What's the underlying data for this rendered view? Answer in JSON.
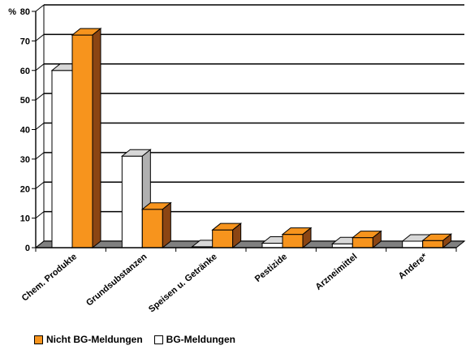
{
  "chart_data": {
    "type": "bar",
    "style": "3d-clustered",
    "unit_label": "%",
    "categories": [
      "Chem. Produkte",
      "Grundsubstanzen",
      "Speisen u. Getränke",
      "Pestizide",
      "Arzneimittel",
      "Andere*"
    ],
    "series": [
      {
        "name": "BG-Meldungen",
        "values": [
          60,
          31,
          0.3,
          1.5,
          1.3,
          2.2
        ],
        "color": "#ffffff",
        "side_color": "#b0b0b0",
        "top_color": "#d8d8d8"
      },
      {
        "name": "Nicht BG-Meldungen",
        "values": [
          72,
          13,
          6,
          4.5,
          3.4,
          2.4
        ],
        "color": "#f7941d",
        "side_color": "#8b4513",
        "top_color": "#f7941d"
      }
    ],
    "xlabel": "",
    "ylabel": "%",
    "ylim": [
      0,
      80
    ],
    "yticks": [
      0,
      10,
      20,
      30,
      40,
      50,
      60,
      70,
      80
    ],
    "grid": true,
    "legend_position": "bottom-left"
  },
  "legend": [
    {
      "label": "Nicht BG-Meldungen",
      "color": "#f7941d"
    },
    {
      "label": "BG-Meldungen",
      "color": "#ffffff"
    }
  ]
}
